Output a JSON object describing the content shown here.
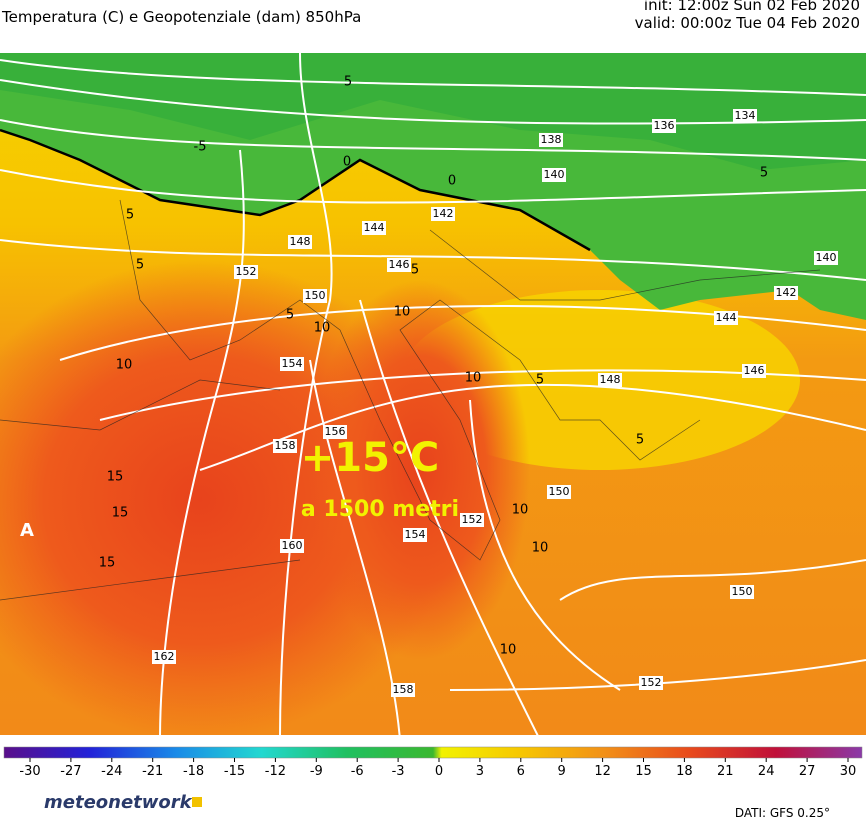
{
  "header": {
    "title": "Temperatura (C) e Geopotenziale (dam) 850hPa",
    "init": "init: 12:00z Sun 02 Feb 2020",
    "valid": "valid: 00:00z Tue 04 Feb 2020"
  },
  "map": {
    "headline": "+15°C",
    "subline": "a 1500 metri",
    "high_marker": "A",
    "height_labels": [
      "134",
      "136",
      "138",
      "140",
      "142",
      "144",
      "146",
      "148",
      "150",
      "152",
      "154",
      "156",
      "158",
      "160",
      "162",
      "150",
      "154",
      "152",
      "158",
      "152",
      "150",
      "146",
      "148",
      "144",
      "142",
      "140"
    ],
    "temperature_labels": [
      "5",
      "-5",
      "0",
      "0",
      "5",
      "5",
      "5",
      "5",
      "5",
      "10",
      "10",
      "10",
      "10",
      "5",
      "15",
      "15",
      "15",
      "10",
      "10",
      "10",
      "5"
    ]
  },
  "colorbar": {
    "ticks": [
      -30,
      -27,
      -24,
      -21,
      -18,
      -15,
      -12,
      -9,
      -6,
      -3,
      0,
      3,
      6,
      9,
      12,
      15,
      18,
      21,
      24,
      27,
      30
    ]
  },
  "footer": {
    "logo": "meteonetwork",
    "source": "DATI: GFS 0.25°"
  }
}
